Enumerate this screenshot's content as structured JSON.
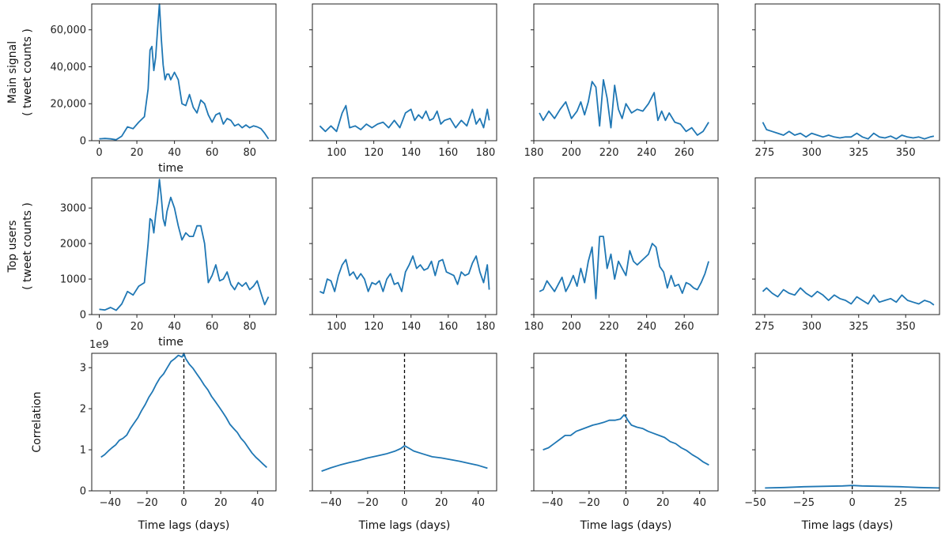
{
  "chart_data": {
    "type": "line",
    "title": "",
    "layout": "3 rows x 4 columns, rows share y-axis",
    "rows": [
      {
        "name": "main-signal",
        "ylabel_lines": [
          "Main signal",
          "( tweet counts )"
        ],
        "xlabel": "time",
        "xlabel_col": 0,
        "ylim": [
          0,
          74000
        ],
        "yticks": [
          0,
          20000,
          40000,
          60000
        ],
        "ytick_labels": [
          "0",
          "20,000",
          "40,000",
          "60,000"
        ],
        "offset_label": ""
      },
      {
        "name": "top-users",
        "ylabel_lines": [
          "Top users",
          "( tweet counts )"
        ],
        "xlabel": "time",
        "xlabel_col": 0,
        "ylim": [
          0,
          3850
        ],
        "yticks": [
          0,
          1000,
          2000,
          3000
        ],
        "ytick_labels": [
          "0",
          "1000",
          "2000",
          "3000"
        ],
        "offset_label": ""
      },
      {
        "name": "correlation",
        "ylabel_lines": [
          "Correlation"
        ],
        "xlabel": "Time lags (days)",
        "xlabel_col": -1,
        "ylim": [
          0,
          3.35
        ],
        "yticks": [
          0,
          1,
          2,
          3
        ],
        "ytick_labels": [
          "0",
          "1",
          "2",
          "3"
        ],
        "offset_label": "1e9"
      }
    ],
    "panels": [
      {
        "row": 0,
        "col": 0,
        "xlim": [
          -4,
          94
        ],
        "xticks": [
          0,
          20,
          40,
          60,
          80
        ],
        "x": [
          0,
          3,
          6,
          9,
          12,
          15,
          18,
          21,
          24,
          26,
          27,
          28,
          29,
          30,
          31,
          32,
          33,
          34,
          35,
          36,
          37,
          38,
          40,
          42,
          44,
          46,
          48,
          50,
          52,
          54,
          56,
          58,
          60,
          62,
          64,
          66,
          68,
          70,
          72,
          74,
          76,
          78,
          80,
          82,
          84,
          86,
          88,
          90
        ],
        "y": [
          1000,
          1200,
          1000,
          500,
          2500,
          7500,
          6500,
          10000,
          13000,
          28000,
          49000,
          51000,
          38000,
          45000,
          60000,
          74000,
          55000,
          41000,
          33000,
          36000,
          36000,
          33000,
          37000,
          33000,
          20000,
          19000,
          25000,
          18000,
          15000,
          22000,
          20000,
          14000,
          10000,
          14000,
          15000,
          9000,
          12000,
          11000,
          8000,
          9000,
          7000,
          8500,
          7000,
          8000,
          7500,
          6500,
          4000,
          1000
        ]
      },
      {
        "row": 0,
        "col": 1,
        "xlim": [
          87,
          186
        ],
        "xticks": [
          100,
          120,
          140,
          160,
          180
        ],
        "x": [
          91,
          94,
          97,
          100,
          103,
          105,
          107,
          110,
          113,
          116,
          119,
          122,
          125,
          128,
          131,
          134,
          137,
          140,
          142,
          144,
          146,
          148,
          150,
          152,
          154,
          156,
          158,
          161,
          164,
          167,
          170,
          173,
          175,
          177,
          179,
          181,
          182
        ],
        "y": [
          8000,
          5000,
          8000,
          5000,
          15000,
          19000,
          7000,
          8000,
          6000,
          9000,
          7000,
          9000,
          10000,
          7000,
          11000,
          7000,
          15000,
          17000,
          11000,
          14000,
          12000,
          16000,
          11000,
          12000,
          16000,
          9000,
          11000,
          12000,
          7000,
          11000,
          8000,
          17000,
          9000,
          12000,
          7000,
          17000,
          11000
        ]
      },
      {
        "row": 0,
        "col": 2,
        "xlim": [
          180,
          278
        ],
        "xticks": [
          180,
          200,
          220,
          240,
          260
        ],
        "x": [
          183,
          185,
          188,
          191,
          194,
          197,
          200,
          203,
          205,
          207,
          209,
          211,
          213,
          215,
          217,
          219,
          221,
          223,
          225,
          227,
          229,
          232,
          235,
          238,
          241,
          244,
          246,
          248,
          250,
          252,
          255,
          258,
          261,
          264,
          267,
          270,
          273
        ],
        "y": [
          15000,
          11000,
          16000,
          12000,
          17000,
          21000,
          12000,
          16000,
          21000,
          14000,
          21000,
          32000,
          29000,
          8000,
          33000,
          23000,
          7000,
          30000,
          17000,
          12000,
          20000,
          15000,
          17000,
          16000,
          20000,
          26000,
          11000,
          16000,
          11000,
          15000,
          10000,
          9000,
          5000,
          7000,
          3000,
          5000,
          10000
        ]
      },
      {
        "row": 0,
        "col": 3,
        "xlim": [
          270,
          368
        ],
        "xticks": [
          275,
          300,
          325,
          350
        ],
        "x": [
          274,
          276,
          279,
          282,
          285,
          288,
          291,
          294,
          297,
          300,
          303,
          306,
          309,
          312,
          315,
          318,
          321,
          324,
          327,
          330,
          333,
          336,
          339,
          342,
          345,
          348,
          351,
          354,
          357,
          360,
          363,
          365
        ],
        "y": [
          10000,
          6000,
          5000,
          4000,
          3000,
          5000,
          3000,
          4000,
          2000,
          4000,
          3000,
          2000,
          3000,
          2000,
          1500,
          2000,
          2000,
          4000,
          2000,
          1000,
          4000,
          2000,
          1500,
          2500,
          1000,
          3000,
          2000,
          1500,
          2000,
          1000,
          2000,
          2500
        ]
      },
      {
        "row": 1,
        "col": 0,
        "xlim": [
          -4,
          94
        ],
        "xticks": [
          0,
          20,
          40,
          60,
          80
        ],
        "x": [
          0,
          3,
          6,
          9,
          12,
          15,
          18,
          21,
          24,
          26,
          27,
          28,
          29,
          30,
          31,
          32,
          33,
          34,
          35,
          36,
          37,
          38,
          40,
          42,
          44,
          46,
          48,
          50,
          52,
          54,
          56,
          58,
          60,
          62,
          64,
          66,
          68,
          70,
          72,
          74,
          76,
          78,
          80,
          82,
          84,
          86,
          88,
          90
        ],
        "y": [
          150,
          130,
          200,
          120,
          300,
          650,
          550,
          800,
          900,
          2000,
          2700,
          2650,
          2300,
          2800,
          3200,
          3800,
          3300,
          2700,
          2500,
          2900,
          3100,
          3300,
          3000,
          2500,
          2100,
          2300,
          2200,
          2200,
          2500,
          2500,
          2000,
          900,
          1100,
          1400,
          950,
          1000,
          1200,
          850,
          700,
          900,
          800,
          900,
          700,
          800,
          950,
          600,
          280,
          500
        ]
      },
      {
        "row": 1,
        "col": 1,
        "xlim": [
          87,
          186
        ],
        "xticks": [
          100,
          120,
          140,
          160,
          180
        ],
        "x": [
          91,
          93,
          95,
          97,
          99,
          101,
          103,
          105,
          107,
          109,
          111,
          113,
          115,
          117,
          119,
          121,
          123,
          125,
          127,
          129,
          131,
          133,
          135,
          137,
          139,
          141,
          143,
          145,
          147,
          149,
          151,
          153,
          155,
          157,
          159,
          161,
          163,
          165,
          167,
          169,
          171,
          173,
          175,
          177,
          179,
          181,
          182
        ],
        "y": [
          650,
          600,
          1000,
          950,
          650,
          1100,
          1400,
          1550,
          1100,
          1200,
          1000,
          1150,
          1000,
          650,
          900,
          850,
          950,
          650,
          1000,
          1150,
          850,
          900,
          650,
          1200,
          1400,
          1650,
          1300,
          1400,
          1250,
          1300,
          1500,
          1100,
          1500,
          1550,
          1200,
          1150,
          1100,
          850,
          1200,
          1100,
          1150,
          1450,
          1650,
          1200,
          900,
          1400,
          700
        ]
      },
      {
        "row": 1,
        "col": 2,
        "xlim": [
          180,
          278
        ],
        "xticks": [
          180,
          200,
          220,
          240,
          260
        ],
        "x": [
          183,
          185,
          187,
          189,
          191,
          193,
          195,
          197,
          199,
          201,
          203,
          205,
          207,
          209,
          211,
          213,
          215,
          217,
          219,
          221,
          223,
          225,
          227,
          229,
          231,
          233,
          235,
          237,
          239,
          241,
          243,
          245,
          247,
          249,
          251,
          253,
          255,
          257,
          259,
          261,
          263,
          265,
          267,
          269,
          271,
          273
        ],
        "y": [
          650,
          700,
          950,
          800,
          650,
          850,
          1050,
          650,
          850,
          1100,
          800,
          1300,
          900,
          1500,
          1900,
          450,
          2200,
          2200,
          1300,
          1700,
          1000,
          1500,
          1300,
          1100,
          1800,
          1500,
          1400,
          1500,
          1600,
          1700,
          2000,
          1900,
          1350,
          1200,
          750,
          1100,
          800,
          850,
          600,
          900,
          850,
          750,
          700,
          900,
          1150,
          1500
        ]
      },
      {
        "row": 1,
        "col": 3,
        "xlim": [
          270,
          368
        ],
        "xticks": [
          275,
          300,
          325,
          350
        ],
        "x": [
          274,
          276,
          279,
          282,
          285,
          288,
          291,
          294,
          297,
          300,
          303,
          306,
          309,
          312,
          315,
          318,
          321,
          324,
          327,
          330,
          333,
          336,
          339,
          342,
          345,
          348,
          351,
          354,
          357,
          360,
          363,
          365
        ],
        "y": [
          650,
          750,
          600,
          500,
          700,
          600,
          550,
          750,
          600,
          500,
          650,
          550,
          400,
          550,
          450,
          400,
          300,
          500,
          400,
          300,
          550,
          350,
          400,
          450,
          350,
          550,
          400,
          350,
          300,
          400,
          350,
          270
        ]
      },
      {
        "row": 2,
        "col": 0,
        "xlim": [
          -50,
          50
        ],
        "xticks": [
          -40,
          -20,
          0,
          20,
          40
        ],
        "zero_line": true,
        "x": [
          -45,
          -43,
          -41,
          -39,
          -37,
          -35,
          -33,
          -31,
          -29,
          -27,
          -25,
          -23,
          -21,
          -19,
          -17,
          -15,
          -13,
          -11,
          -9,
          -7,
          -5,
          -3,
          -1,
          0,
          1,
          3,
          5,
          7,
          9,
          11,
          13,
          15,
          17,
          19,
          21,
          23,
          25,
          27,
          29,
          31,
          33,
          35,
          37,
          39,
          41,
          43,
          45
        ],
        "y": [
          0.82,
          0.88,
          0.97,
          1.05,
          1.12,
          1.23,
          1.28,
          1.36,
          1.52,
          1.65,
          1.78,
          1.95,
          2.1,
          2.28,
          2.42,
          2.6,
          2.75,
          2.85,
          3.0,
          3.15,
          3.22,
          3.3,
          3.26,
          3.35,
          3.22,
          3.08,
          2.98,
          2.85,
          2.72,
          2.58,
          2.46,
          2.3,
          2.18,
          2.05,
          1.92,
          1.78,
          1.62,
          1.52,
          1.42,
          1.28,
          1.18,
          1.05,
          0.92,
          0.82,
          0.74,
          0.65,
          0.57
        ]
      },
      {
        "row": 2,
        "col": 1,
        "xlim": [
          -50,
          50
        ],
        "xticks": [
          -40,
          -20,
          0,
          20,
          40
        ],
        "zero_line": true,
        "x": [
          -45,
          -40,
          -35,
          -30,
          -25,
          -20,
          -15,
          -10,
          -5,
          -2,
          0,
          2,
          5,
          10,
          15,
          20,
          25,
          30,
          35,
          40,
          45
        ],
        "y": [
          0.48,
          0.56,
          0.63,
          0.69,
          0.74,
          0.8,
          0.85,
          0.9,
          0.97,
          1.03,
          1.1,
          1.05,
          0.97,
          0.9,
          0.83,
          0.8,
          0.76,
          0.72,
          0.67,
          0.62,
          0.55
        ]
      },
      {
        "row": 2,
        "col": 2,
        "xlim": [
          -50,
          50
        ],
        "xticks": [
          -40,
          -20,
          0,
          20,
          40
        ],
        "zero_line": true,
        "x": [
          -45,
          -42,
          -39,
          -36,
          -33,
          -30,
          -27,
          -24,
          -21,
          -18,
          -15,
          -12,
          -9,
          -6,
          -3,
          -1,
          0,
          1,
          3,
          6,
          9,
          12,
          15,
          18,
          21,
          24,
          27,
          30,
          33,
          36,
          39,
          42,
          45
        ],
        "y": [
          1.0,
          1.05,
          1.15,
          1.25,
          1.35,
          1.35,
          1.45,
          1.5,
          1.55,
          1.6,
          1.63,
          1.67,
          1.72,
          1.72,
          1.75,
          1.85,
          1.8,
          1.72,
          1.6,
          1.55,
          1.52,
          1.45,
          1.4,
          1.35,
          1.3,
          1.2,
          1.15,
          1.05,
          0.98,
          0.88,
          0.8,
          0.7,
          0.63
        ]
      },
      {
        "row": 2,
        "col": 3,
        "xlim": [
          -50,
          45
        ],
        "xticks": [
          -50,
          -25,
          0,
          25
        ],
        "zero_line": true,
        "x": [
          -45,
          -35,
          -25,
          -15,
          -5,
          0,
          5,
          15,
          25,
          35,
          45
        ],
        "y": [
          0.07,
          0.08,
          0.1,
          0.11,
          0.12,
          0.13,
          0.12,
          0.11,
          0.1,
          0.08,
          0.07
        ]
      }
    ]
  }
}
